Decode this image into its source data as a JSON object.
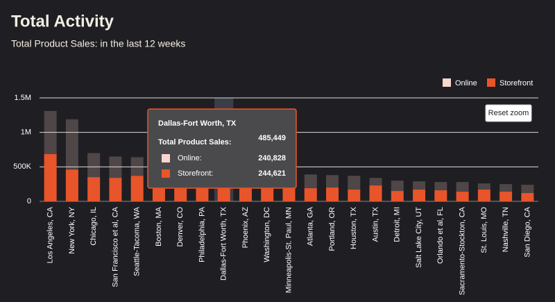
{
  "chart_data": {
    "type": "stacked-bar",
    "title": "Total Activity",
    "subtitle": "Total Product Sales: in the last 12 weeks",
    "categories": [
      "Los Angeles, CA",
      "New York, NY",
      "Chicago, IL",
      "San Francisco et al, CA",
      "Seattle-Tacoma, WA",
      "Boston, MA",
      "Denver, CO",
      "Philadelphia, PA",
      "Dallas-Fort Worth, TX",
      "Phoenix, AZ",
      "Washington, DC",
      "Minneapolis-St. Paul, MN",
      "Atlanta, GA",
      "Portland, OR",
      "Houston, TX",
      "Austin, TX",
      "Detroit, MI",
      "Salt Lake City, UT",
      "Orlando et al, FL",
      "Sacramento-Stockton, CA",
      "St. Louis, MO",
      "Nashville, TN",
      "San Diego, CA"
    ],
    "series": [
      {
        "name": "Storefront",
        "color": "#e8552a",
        "values": [
          685000,
          460000,
          350000,
          340000,
          370000,
          290000,
          280000,
          270000,
          244621,
          250000,
          230000,
          220000,
          190000,
          200000,
          170000,
          230000,
          150000,
          170000,
          160000,
          140000,
          170000,
          140000,
          120000
        ]
      },
      {
        "name": "Online",
        "color": "#f9d7cf",
        "values": [
          625000,
          730000,
          350000,
          310000,
          270000,
          260000,
          240000,
          230000,
          240828,
          210000,
          210000,
          200000,
          200000,
          180000,
          200000,
          110000,
          150000,
          120000,
          120000,
          140000,
          90000,
          110000,
          120000
        ]
      }
    ],
    "ylim": [
      0,
      1500000
    ],
    "yticks": [
      0,
      {
        "value": 500000,
        "label": "500K"
      },
      {
        "value": 1000000,
        "label": "1M"
      },
      {
        "value": 1500000,
        "label": "1.5M"
      }
    ],
    "grid": true,
    "legend": "top-right",
    "highlight": 8,
    "button": "Reset zoom",
    "tooltip": {
      "title": "Dallas-Fort Worth, TX",
      "total_label": "Total Product Sales:",
      "total": "485,449",
      "items": [
        {
          "name": "Online:",
          "value": "240,828"
        },
        {
          "name": "Storefront:",
          "value": "244,621"
        }
      ]
    }
  }
}
